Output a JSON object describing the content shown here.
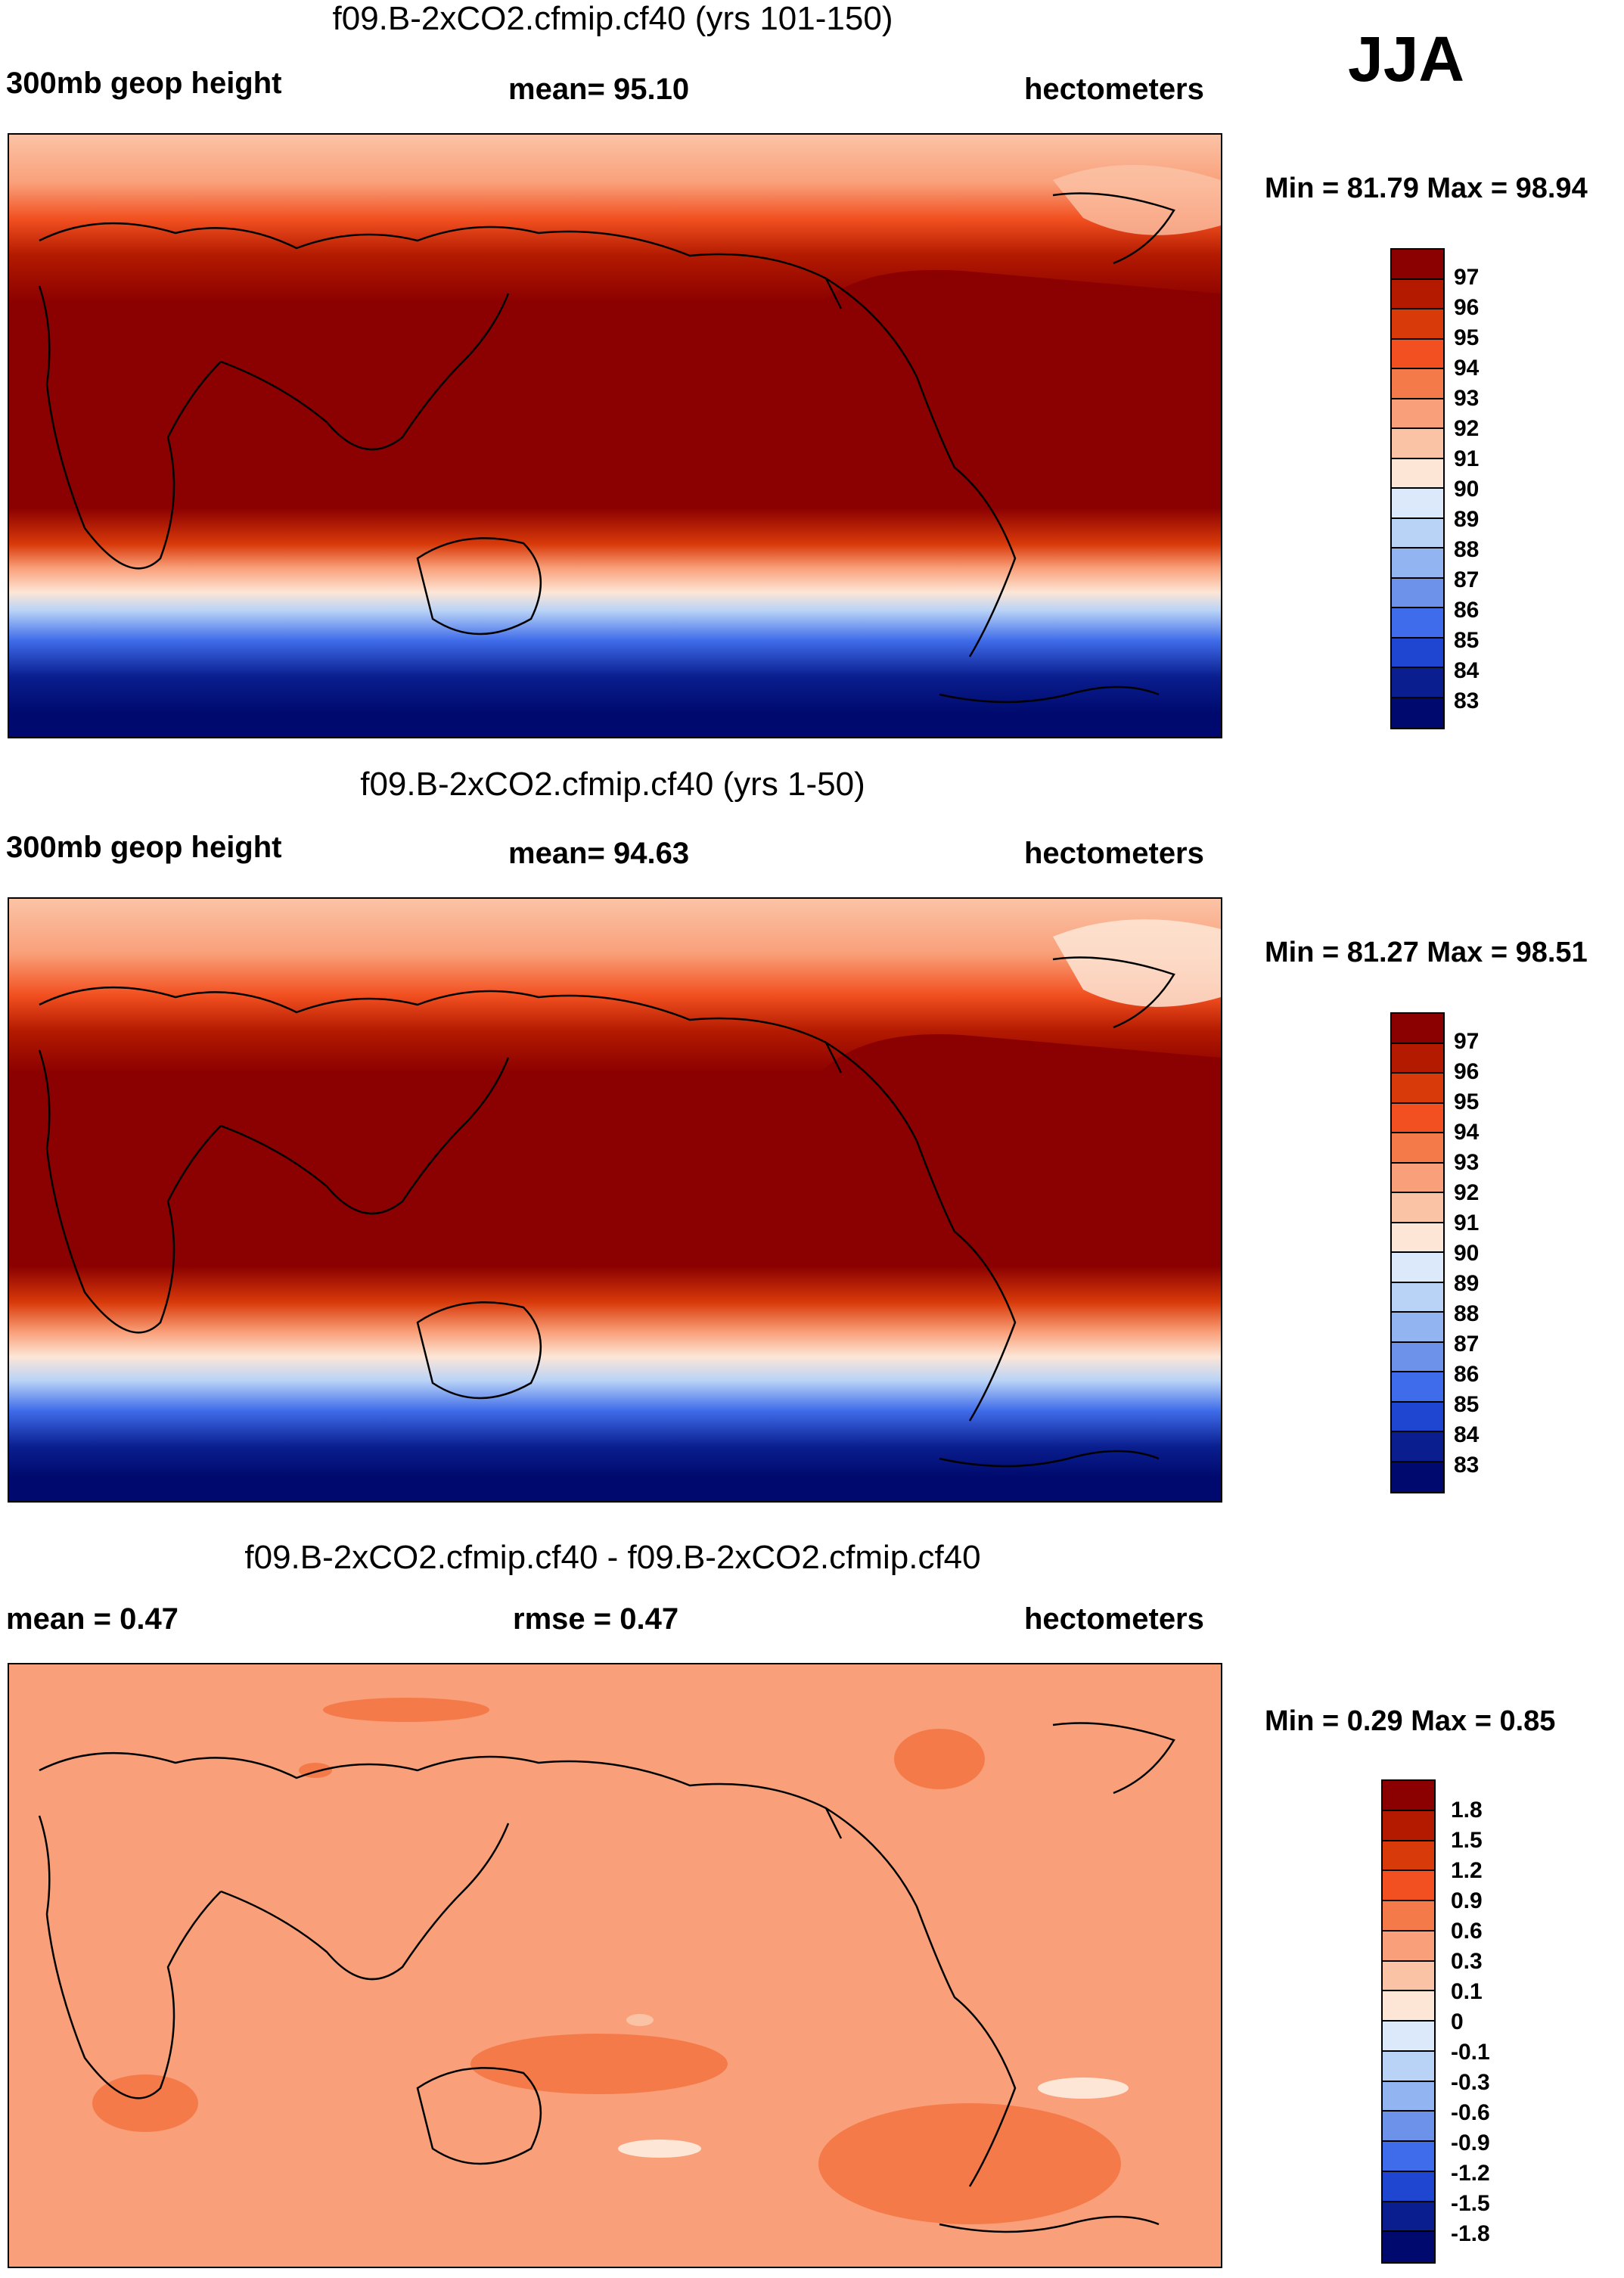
{
  "season": "JJA",
  "panels": [
    {
      "title": "f09.B-2xCO2.cfmip.cf40 (yrs 101-150)",
      "left_label": "300mb geop height",
      "center_label": "mean=  95.10",
      "units": "hectometers",
      "minmax": "Min =  81.79 Max =  98.94",
      "colorbar_labels": [
        "97",
        "96",
        "95",
        "94",
        "93",
        "92",
        "91",
        "90",
        "89",
        "88",
        "87",
        "86",
        "85",
        "84",
        "83"
      ],
      "colorbar_colors": [
        "#8b0000",
        "#b31a00",
        "#d93a0a",
        "#f25020",
        "#f57a4a",
        "#f9a07a",
        "#fbc3a6",
        "#fde6d6",
        "#dbe9fa",
        "#b9d3f6",
        "#92b4f0",
        "#6c92ea",
        "#3f6cea",
        "#1e46d0",
        "#0a1e8f",
        "#000a6e"
      ]
    },
    {
      "title": "f09.B-2xCO2.cfmip.cf40 (yrs 1-50)",
      "left_label": "300mb geop height",
      "center_label": "mean=  94.63",
      "units": "hectometers",
      "minmax": "Min =  81.27 Max =  98.51",
      "colorbar_labels": [
        "97",
        "96",
        "95",
        "94",
        "93",
        "92",
        "91",
        "90",
        "89",
        "88",
        "87",
        "86",
        "85",
        "84",
        "83"
      ],
      "colorbar_colors": [
        "#8b0000",
        "#b31a00",
        "#d93a0a",
        "#f25020",
        "#f57a4a",
        "#f9a07a",
        "#fbc3a6",
        "#fde6d6",
        "#dbe9fa",
        "#b9d3f6",
        "#92b4f0",
        "#6c92ea",
        "#3f6cea",
        "#1e46d0",
        "#0a1e8f",
        "#000a6e"
      ]
    },
    {
      "title": "f09.B-2xCO2.cfmip.cf40 - f09.B-2xCO2.cfmip.cf40",
      "left_label": "mean =   0.47",
      "center_label": "rmse =   0.47",
      "units": "hectometers",
      "minmax": "Min =   0.29 Max =   0.85",
      "colorbar_labels": [
        "1.8",
        "1.5",
        "1.2",
        "0.9",
        "0.6",
        "0.3",
        "0.1",
        "0",
        "-0.1",
        "-0.3",
        "-0.6",
        "-0.9",
        "-1.2",
        "-1.5",
        "-1.8"
      ],
      "colorbar_colors": [
        "#8b0000",
        "#b31a00",
        "#d93a0a",
        "#f25020",
        "#f57a4a",
        "#f9a07a",
        "#fbc3a6",
        "#fde6d6",
        "#dbe9fa",
        "#b9d3f6",
        "#92b4f0",
        "#6c92ea",
        "#3f6cea",
        "#1e46d0",
        "#0a1e8f",
        "#000a6e"
      ]
    }
  ],
  "chart_data": [
    {
      "type": "heatmap",
      "title": "f09.B-2xCO2.cfmip.cf40 (yrs 101-150)",
      "variable": "300mb geop height",
      "units": "hectometers",
      "mean": 95.1,
      "min": 81.79,
      "max": 98.94,
      "levels": [
        83,
        84,
        85,
        86,
        87,
        88,
        89,
        90,
        91,
        92,
        93,
        94,
        95,
        96,
        97
      ]
    },
    {
      "type": "heatmap",
      "title": "f09.B-2xCO2.cfmip.cf40 (yrs 1-50)",
      "variable": "300mb geop height",
      "units": "hectometers",
      "mean": 94.63,
      "min": 81.27,
      "max": 98.51,
      "levels": [
        83,
        84,
        85,
        86,
        87,
        88,
        89,
        90,
        91,
        92,
        93,
        94,
        95,
        96,
        97
      ]
    },
    {
      "type": "heatmap",
      "title": "f09.B-2xCO2.cfmip.cf40 - f09.B-2xCO2.cfmip.cf40",
      "units": "hectometers",
      "mean": 0.47,
      "rmse": 0.47,
      "min": 0.29,
      "max": 0.85,
      "levels": [
        -1.8,
        -1.5,
        -1.2,
        -0.9,
        -0.6,
        -0.3,
        -0.1,
        0,
        0.1,
        0.3,
        0.6,
        0.9,
        1.2,
        1.5,
        1.8
      ]
    }
  ]
}
